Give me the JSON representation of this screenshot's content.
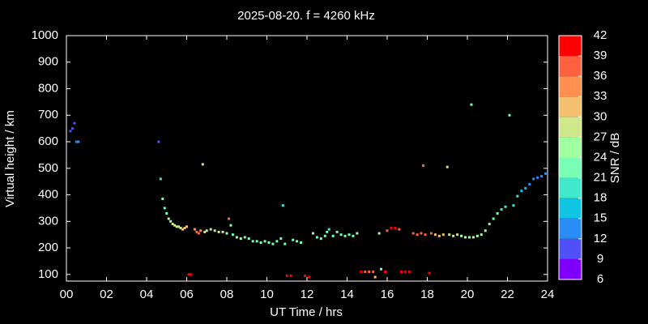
{
  "chart_data": {
    "type": "scatter",
    "title": "2025-08-20. f = 4260 kHz",
    "x_label": "UT Time / hrs",
    "y_label": "Virtual height / km",
    "xlim": [
      0,
      24
    ],
    "ylim": [
      75,
      1000
    ],
    "xticks": [
      {
        "value": 0,
        "label": "00"
      },
      {
        "value": 2,
        "label": "02"
      },
      {
        "value": 4,
        "label": "04"
      },
      {
        "value": 6,
        "label": "06"
      },
      {
        "value": 8,
        "label": "08"
      },
      {
        "value": 10,
        "label": "10"
      },
      {
        "value": 12,
        "label": "12"
      },
      {
        "value": 14,
        "label": "14"
      },
      {
        "value": 16,
        "label": "16"
      },
      {
        "value": 18,
        "label": "18"
      },
      {
        "value": 20,
        "label": "20"
      },
      {
        "value": 22,
        "label": "22"
      },
      {
        "value": 24,
        "label": "24"
      }
    ],
    "yticks": [
      100,
      200,
      300,
      400,
      500,
      600,
      700,
      800,
      900,
      1000
    ],
    "colorbar": {
      "label": "SNR / dB",
      "lim": [
        6,
        42
      ],
      "ticks": [
        6,
        9,
        12,
        15,
        18,
        21,
        24,
        27,
        30,
        33,
        36,
        39,
        42
      ],
      "colors": [
        "#8000ff",
        "#5050f8",
        "#2a8cf5",
        "#10c4e4",
        "#40e8cc",
        "#78ffb4",
        "#a0ffa0",
        "#d0e88c",
        "#f4c070",
        "#ff9050",
        "#ff6040",
        "#ff0000"
      ]
    },
    "x": [
      0.2,
      0.3,
      0.4,
      0.5,
      0.6,
      4.6,
      4.7,
      4.8,
      4.9,
      5.0,
      5.1,
      5.2,
      5.3,
      5.4,
      5.5,
      5.6,
      5.7,
      5.8,
      5.9,
      6.0,
      6.1,
      6.2,
      6.4,
      6.5,
      6.6,
      6.7,
      6.8,
      6.9,
      7.0,
      7.2,
      7.4,
      7.6,
      7.8,
      8.0,
      8.1,
      8.2,
      8.3,
      8.5,
      8.7,
      8.9,
      9.1,
      9.3,
      9.5,
      9.7,
      9.9,
      10.1,
      10.3,
      10.5,
      10.7,
      10.8,
      10.9,
      11.0,
      11.2,
      11.3,
      11.5,
      11.7,
      11.9,
      12.1,
      12.3,
      12.5,
      12.7,
      12.9,
      13.0,
      13.1,
      13.3,
      13.5,
      13.7,
      13.9,
      14.1,
      14.3,
      14.5,
      14.7,
      14.9,
      15.1,
      15.3,
      15.4,
      15.6,
      15.7,
      15.9,
      16.0,
      16.2,
      16.4,
      16.6,
      16.7,
      16.9,
      17.1,
      17.3,
      17.5,
      17.7,
      17.8,
      17.9,
      18.1,
      18.2,
      18.4,
      18.6,
      18.8,
      19.0,
      19.1,
      19.3,
      19.5,
      19.7,
      19.9,
      20.1,
      20.2,
      20.3,
      20.5,
      20.7,
      20.9,
      21.1,
      21.3,
      21.5,
      21.7,
      21.9,
      22.1,
      22.3,
      22.5,
      22.7,
      22.9,
      23.1,
      23.3,
      23.5,
      23.7,
      23.9
    ],
    "values": [
      640,
      650,
      670,
      600,
      600,
      600,
      460,
      385,
      350,
      330,
      310,
      300,
      290,
      285,
      280,
      280,
      275,
      270,
      275,
      280,
      100,
      100,
      270,
      260,
      255,
      265,
      515,
      260,
      265,
      270,
      265,
      260,
      260,
      255,
      310,
      285,
      250,
      240,
      235,
      240,
      235,
      225,
      225,
      220,
      225,
      220,
      215,
      225,
      235,
      360,
      215,
      95,
      95,
      230,
      225,
      220,
      95,
      90,
      255,
      240,
      235,
      245,
      260,
      270,
      245,
      260,
      250,
      245,
      250,
      245,
      255,
      110,
      110,
      110,
      110,
      90,
      255,
      120,
      110,
      265,
      275,
      275,
      270,
      110,
      110,
      110,
      255,
      250,
      255,
      510,
      250,
      105,
      255,
      250,
      245,
      250,
      505,
      250,
      245,
      250,
      245,
      240,
      240,
      740,
      240,
      245,
      250,
      265,
      290,
      310,
      330,
      345,
      355,
      700,
      360,
      395,
      415,
      425,
      440,
      460,
      465,
      470,
      480
    ],
    "snr": [
      10,
      10,
      10,
      13,
      13,
      10,
      19,
      21,
      22,
      23,
      25,
      26,
      27,
      28,
      29,
      29,
      29,
      30,
      31,
      31,
      39,
      39,
      34,
      36,
      36,
      33,
      29,
      29,
      28,
      28,
      29,
      27,
      27,
      26,
      36,
      21,
      23,
      24,
      24,
      23,
      22,
      23,
      22,
      23,
      23,
      22,
      23,
      22,
      21,
      19,
      23,
      39,
      39,
      23,
      22,
      22,
      39,
      40,
      24,
      23,
      23,
      22,
      21,
      19,
      23,
      21,
      22,
      23,
      23,
      22,
      24,
      39,
      38,
      37,
      38,
      30,
      25,
      22,
      40,
      38,
      40,
      39,
      38,
      40,
      39,
      39,
      37,
      38,
      38,
      38,
      37,
      40,
      36,
      32,
      31,
      30,
      27,
      29,
      28,
      27,
      26,
      26,
      26,
      23,
      26,
      25,
      25,
      24,
      23,
      22,
      21,
      20,
      19,
      22,
      19,
      18,
      17,
      16,
      14,
      13,
      12,
      12,
      13
    ]
  }
}
